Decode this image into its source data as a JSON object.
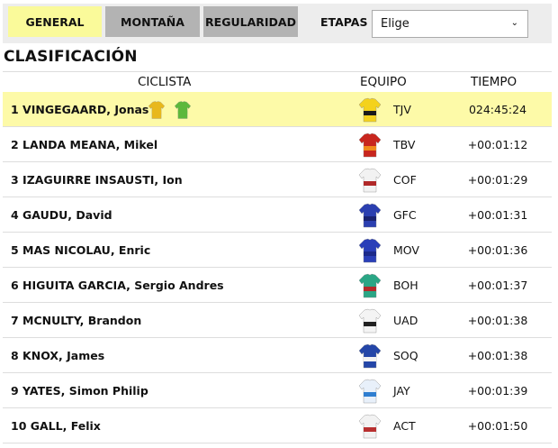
{
  "tabs": [
    {
      "label": "GENERAL",
      "active": true
    },
    {
      "label": "MONTAÑA",
      "active": false
    },
    {
      "label": "REGULARIDAD",
      "active": false
    }
  ],
  "etapas": {
    "label": "ETAPAS",
    "selected": "Elige",
    "icon": "chevron-down-icon"
  },
  "title": "CLASIFICACIÓN",
  "columns": {
    "rider": "CICLISTA",
    "team": "EQUIPO",
    "time": "TIEMPO"
  },
  "colors": {
    "leader_row": "#fdfaa8",
    "active_tab": "#fafa9a",
    "inactive_tab": "#b3b3b3"
  },
  "rows": [
    {
      "rider": "1 VINGEGAARD, Jonas",
      "team": "TJV",
      "time": "024:45:24",
      "jerseys": [
        "yellow",
        "green"
      ],
      "kit": [
        "#f4d21c",
        "#1a1a1a"
      ]
    },
    {
      "rider": "2 LANDA MEANA, Mikel",
      "team": "TBV",
      "time": "+00:01:12",
      "kit": [
        "#c8261e",
        "#f08a1c"
      ]
    },
    {
      "rider": "3 IZAGUIRRE INSAUSTI, Ion",
      "team": "COF",
      "time": "+00:01:29",
      "kit": [
        "#f2f2f2",
        "#b02828"
      ]
    },
    {
      "rider": "4 GAUDU, David",
      "team": "GFC",
      "time": "+00:01:31",
      "kit": [
        "#2b3fb0",
        "#1a2270"
      ]
    },
    {
      "rider": "5 MAS NICOLAU, Enric",
      "team": "MOV",
      "time": "+00:01:36",
      "kit": [
        "#2a3fb8",
        "#1c2a8a"
      ]
    },
    {
      "rider": "6 HIGUITA GARCIA, Sergio Andres",
      "team": "BOH",
      "time": "+00:01:37",
      "kit": [
        "#2aa685",
        "#b52a2a"
      ]
    },
    {
      "rider": "7 MCNULTY, Brandon",
      "team": "UAD",
      "time": "+00:01:38",
      "kit": [
        "#f4f4f4",
        "#222222"
      ]
    },
    {
      "rider": "8 KNOX, James",
      "team": "SOQ",
      "time": "+00:01:38",
      "kit": [
        "#2446a8",
        "#f2f2f2"
      ]
    },
    {
      "rider": "9 YATES, Simon Philip",
      "team": "JAY",
      "time": "+00:01:39",
      "kit": [
        "#e8f0fa",
        "#2f7ed0"
      ]
    },
    {
      "rider": "10 GALL, Felix",
      "team": "ACT",
      "time": "+00:01:50",
      "kit": [
        "#f2f2f2",
        "#b83030"
      ]
    }
  ]
}
